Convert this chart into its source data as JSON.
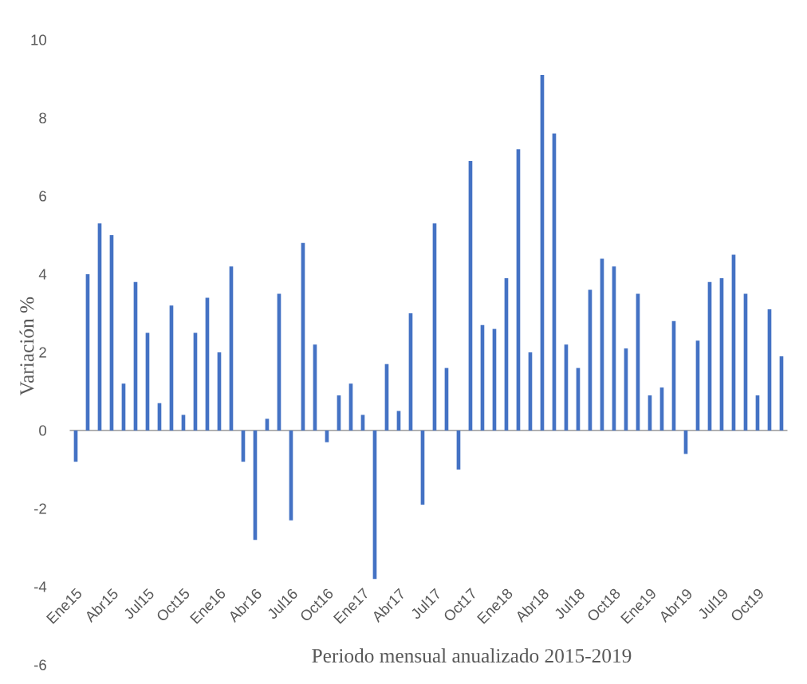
{
  "chart_data": {
    "type": "bar",
    "xlabel": "Periodo mensual anualizado 2015-2019",
    "ylabel": "Variación %",
    "categories": [
      "Ene15",
      null,
      null,
      "Abr15",
      null,
      null,
      "Jul15",
      null,
      null,
      "Oct15",
      null,
      null,
      "Ene16",
      null,
      null,
      "Abr16",
      null,
      null,
      "Jul16",
      null,
      null,
      "Oct16",
      null,
      null,
      "Ene17",
      null,
      null,
      "Abr17",
      null,
      null,
      "Jul17",
      null,
      null,
      "Oct17",
      null,
      null,
      "Ene18",
      null,
      null,
      "Abr18",
      null,
      null,
      "Jul18",
      null,
      null,
      "Oct18",
      null,
      null,
      "Ene19",
      null,
      null,
      "Abr19",
      null,
      null,
      "Jul19",
      null,
      null,
      "Oct19",
      null,
      null
    ],
    "values": [
      -0.8,
      4.0,
      5.3,
      5.0,
      1.2,
      3.8,
      2.5,
      0.7,
      3.2,
      0.4,
      2.5,
      3.4,
      2.0,
      4.2,
      -0.8,
      -2.8,
      0.3,
      3.5,
      -2.3,
      4.8,
      2.2,
      -0.3,
      0.9,
      1.2,
      0.4,
      -3.8,
      1.7,
      0.5,
      3.0,
      -1.9,
      5.3,
      1.6,
      -1.0,
      6.9,
      2.7,
      2.6,
      3.9,
      7.2,
      2.0,
      9.1,
      7.6,
      2.2,
      1.6,
      3.6,
      4.4,
      4.2,
      2.1,
      3.5,
      0.9,
      1.1,
      2.8,
      -0.6,
      2.3,
      3.8,
      3.9,
      4.5,
      3.5,
      0.9,
      3.1,
      1.9
    ],
    "color": "#4472c4",
    "ylim": [
      -6,
      10
    ],
    "yticks": [
      -6,
      -4,
      -2,
      0,
      2,
      4,
      6,
      8,
      10
    ]
  }
}
